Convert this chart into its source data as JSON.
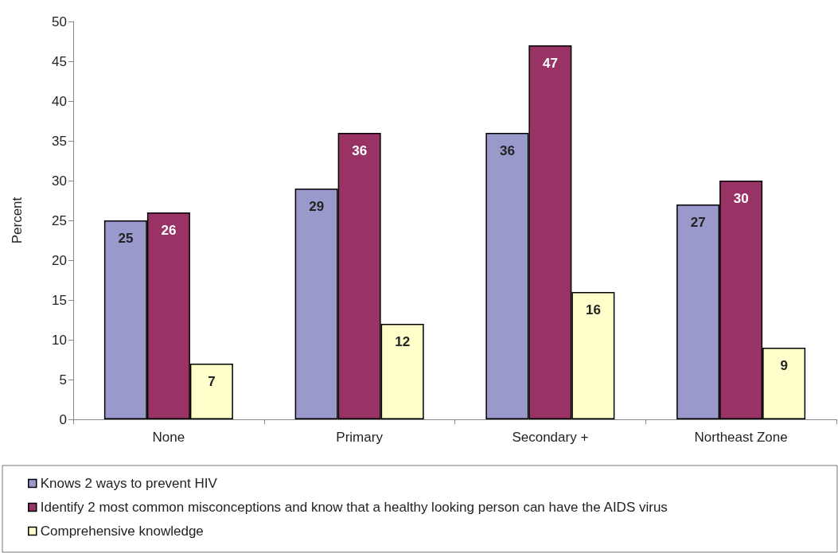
{
  "chart_data": {
    "type": "bar",
    "ylabel": "Percent",
    "categories": [
      "None",
      "Primary",
      "Secondary +",
      "Northeast Zone"
    ],
    "series": [
      {
        "name": "Knows 2 ways to prevent HIV",
        "color": "#9999cc",
        "values": [
          25,
          29,
          36,
          27
        ]
      },
      {
        "name": "Identify 2 most common misconceptions and know that a healthy looking person can have the AIDS virus",
        "color": "#993366",
        "values": [
          26,
          36,
          47,
          30
        ]
      },
      {
        "name": "Comprehensive knowledge",
        "color": "#ffffcc",
        "values": [
          7,
          12,
          16,
          9
        ]
      }
    ],
    "ylim": [
      0,
      50
    ],
    "yticks": [
      0,
      5,
      10,
      15,
      20,
      25,
      30,
      35,
      40,
      45,
      50
    ],
    "grid": false,
    "legend": "bottom",
    "data_labels": true
  }
}
